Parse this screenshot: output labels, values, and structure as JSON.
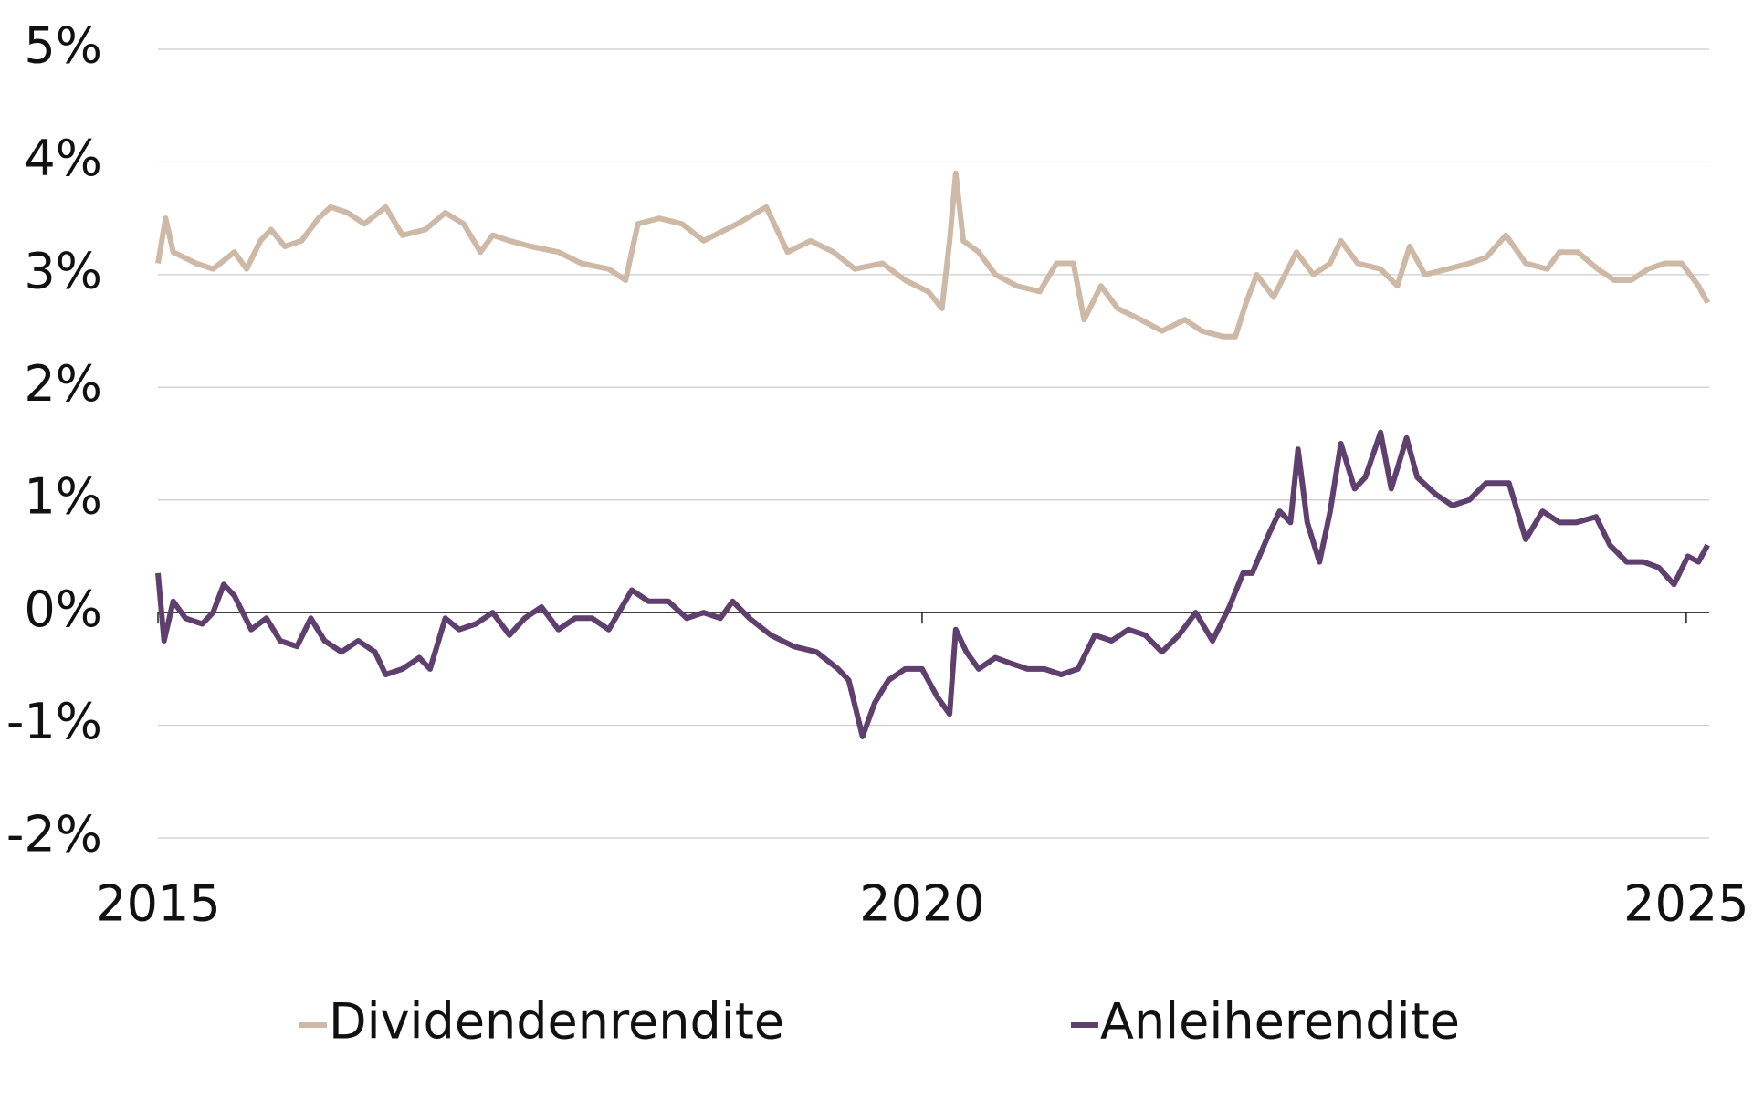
{
  "chart_data": {
    "type": "line",
    "xlim": [
      2015,
      2025.15
    ],
    "xticks": [
      2015,
      2020,
      2025
    ],
    "ylim": [
      -2,
      5
    ],
    "yticks": [
      {
        "value": -2,
        "label": "-2%"
      },
      {
        "value": -1,
        "label": "-1%"
      },
      {
        "value": 0,
        "label": "0%"
      },
      {
        "value": 1,
        "label": "1%"
      },
      {
        "value": 2,
        "label": "2%"
      },
      {
        "value": 3,
        "label": "3%"
      },
      {
        "value": 4,
        "label": "4%"
      },
      {
        "value": 5,
        "label": "5%"
      }
    ],
    "grid": true,
    "legend": "bottom",
    "series": [
      {
        "name": "Dividendenrendite",
        "color": "#cdb9a5",
        "x": [
          2015.0,
          2015.05,
          2015.1,
          2015.25,
          2015.36,
          2015.5,
          2015.58,
          2015.67,
          2015.74,
          2015.83,
          2015.94,
          2016.05,
          2016.13,
          2016.24,
          2016.35,
          2016.49,
          2016.6,
          2016.75,
          2016.88,
          2017.0,
          2017.11,
          2017.19,
          2017.3,
          2017.44,
          2017.62,
          2017.77,
          2017.95,
          2018.06,
          2018.14,
          2018.28,
          2018.43,
          2018.57,
          2018.79,
          2018.98,
          2019.12,
          2019.27,
          2019.42,
          2019.56,
          2019.74,
          2019.89,
          2020.04,
          2020.13,
          2020.18,
          2020.22,
          2020.27,
          2020.37,
          2020.48,
          2020.62,
          2020.77,
          2020.88,
          2020.99,
          2021.06,
          2021.17,
          2021.28,
          2021.43,
          2021.57,
          2021.72,
          2021.83,
          2021.97,
          2022.05,
          2022.12,
          2022.19,
          2022.3,
          2022.45,
          2022.56,
          2022.67,
          2022.74,
          2022.85,
          2023.0,
          2023.11,
          2023.19,
          2023.29,
          2023.44,
          2023.58,
          2023.69,
          2023.82,
          2023.95,
          2024.09,
          2024.17,
          2024.29,
          2024.42,
          2024.53,
          2024.64,
          2024.75,
          2024.86,
          2024.97,
          2025.08,
          2025.14
        ],
        "values": [
          3.1,
          3.5,
          3.2,
          3.1,
          3.05,
          3.2,
          3.05,
          3.3,
          3.4,
          3.25,
          3.3,
          3.5,
          3.6,
          3.55,
          3.45,
          3.6,
          3.35,
          3.4,
          3.55,
          3.45,
          3.2,
          3.35,
          3.3,
          3.25,
          3.2,
          3.1,
          3.05,
          2.95,
          3.45,
          3.5,
          3.45,
          3.3,
          3.45,
          3.6,
          3.2,
          3.3,
          3.2,
          3.05,
          3.1,
          2.95,
          2.85,
          2.7,
          3.3,
          3.9,
          3.3,
          3.2,
          3.0,
          2.9,
          2.85,
          3.1,
          3.1,
          2.6,
          2.9,
          2.7,
          2.6,
          2.5,
          2.6,
          2.5,
          2.45,
          2.45,
          2.75,
          3.0,
          2.8,
          3.2,
          3.0,
          3.1,
          3.3,
          3.1,
          3.05,
          2.9,
          3.25,
          3.0,
          3.05,
          3.1,
          3.15,
          3.35,
          3.1,
          3.05,
          3.2,
          3.2,
          3.05,
          2.95,
          2.95,
          3.05,
          3.1,
          3.1,
          2.9,
          2.75
        ]
      },
      {
        "name": "Anleiherendite",
        "color": "#5e3f6e",
        "x": [
          2015.0,
          2015.04,
          2015.1,
          2015.18,
          2015.29,
          2015.36,
          2015.43,
          2015.5,
          2015.61,
          2015.71,
          2015.8,
          2015.91,
          2016.0,
          2016.09,
          2016.2,
          2016.31,
          2016.42,
          2016.49,
          2016.6,
          2016.71,
          2016.78,
          2016.88,
          2016.97,
          2017.08,
          2017.19,
          2017.3,
          2017.4,
          2017.51,
          2017.62,
          2017.73,
          2017.84,
          2017.95,
          2018.1,
          2018.21,
          2018.34,
          2018.46,
          2018.57,
          2018.68,
          2018.76,
          2018.87,
          2019.01,
          2019.16,
          2019.31,
          2019.45,
          2019.52,
          2019.61,
          2019.69,
          2019.78,
          2019.89,
          2020.0,
          2020.1,
          2020.18,
          2020.22,
          2020.29,
          2020.37,
          2020.48,
          2020.58,
          2020.69,
          2020.8,
          2020.91,
          2021.02,
          2021.13,
          2021.24,
          2021.35,
          2021.46,
          2021.57,
          2021.68,
          2021.79,
          2021.9,
          2022.01,
          2022.1,
          2022.16,
          2022.27,
          2022.34,
          2022.41,
          2022.46,
          2022.52,
          2022.6,
          2022.67,
          2022.74,
          2022.83,
          2022.9,
          2023.0,
          2023.07,
          2023.17,
          2023.24,
          2023.36,
          2023.47,
          2023.58,
          2023.69,
          2023.84,
          2023.95,
          2024.06,
          2024.17,
          2024.28,
          2024.41,
          2024.5,
          2024.61,
          2024.72,
          2024.82,
          2024.92,
          2025.01,
          2025.08,
          2025.14
        ],
        "values": [
          0.35,
          -0.25,
          0.1,
          -0.05,
          -0.1,
          0.0,
          0.25,
          0.15,
          -0.15,
          -0.05,
          -0.25,
          -0.3,
          -0.05,
          -0.25,
          -0.35,
          -0.25,
          -0.35,
          -0.55,
          -0.5,
          -0.4,
          -0.5,
          -0.05,
          -0.15,
          -0.1,
          0.0,
          -0.2,
          -0.05,
          0.05,
          -0.15,
          -0.05,
          -0.05,
          -0.15,
          0.2,
          0.1,
          0.1,
          -0.05,
          0.0,
          -0.05,
          0.1,
          -0.05,
          -0.2,
          -0.3,
          -0.35,
          -0.5,
          -0.6,
          -1.1,
          -0.8,
          -0.6,
          -0.5,
          -0.5,
          -0.75,
          -0.9,
          -0.15,
          -0.35,
          -0.5,
          -0.4,
          -0.45,
          -0.5,
          -0.5,
          -0.55,
          -0.5,
          -0.2,
          -0.25,
          -0.15,
          -0.2,
          -0.35,
          -0.2,
          0.0,
          -0.25,
          0.05,
          0.35,
          0.35,
          0.7,
          0.9,
          0.8,
          1.45,
          0.8,
          0.45,
          0.9,
          1.5,
          1.1,
          1.2,
          1.6,
          1.1,
          1.55,
          1.2,
          1.05,
          0.95,
          1.0,
          1.15,
          1.15,
          0.65,
          0.9,
          0.8,
          0.8,
          0.85,
          0.6,
          0.45,
          0.45,
          0.4,
          0.25,
          0.5,
          0.45,
          0.6
        ]
      }
    ]
  }
}
